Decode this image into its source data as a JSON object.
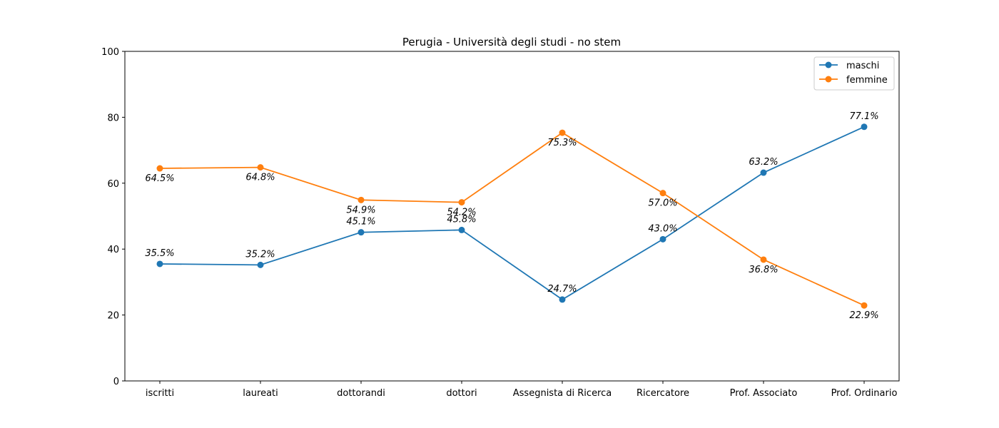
{
  "chart_data": {
    "type": "line",
    "title": "Perugia - Università degli studi - no stem",
    "xlabel": "",
    "ylabel": "",
    "ylim": [
      0,
      100
    ],
    "yticks": [
      0,
      20,
      40,
      60,
      80,
      100
    ],
    "grid": false,
    "legend_position": "top-right",
    "categories": [
      "iscritti",
      "laureati",
      "dottorandi",
      "dottori",
      "Assegnista di Ricerca",
      "Ricercatore",
      "Prof. Associato",
      "Prof. Ordinario"
    ],
    "series": [
      {
        "name": "maschi",
        "color": "#1f77b4",
        "values": [
          35.5,
          35.2,
          45.1,
          45.8,
          24.7,
          43.0,
          63.2,
          77.1
        ],
        "labels": [
          "35.5%",
          "35.2%",
          "45.1%",
          "45.8%",
          "24.7%",
          "43.0%",
          "63.2%",
          "77.1%"
        ]
      },
      {
        "name": "femmine",
        "color": "#ff7f0e",
        "values": [
          64.5,
          64.8,
          54.9,
          54.2,
          75.3,
          57.0,
          36.8,
          22.9
        ],
        "labels": [
          "64.5%",
          "64.8%",
          "54.9%",
          "54.2%",
          "75.3%",
          "57.0%",
          "36.8%",
          "22.9%"
        ]
      }
    ]
  }
}
